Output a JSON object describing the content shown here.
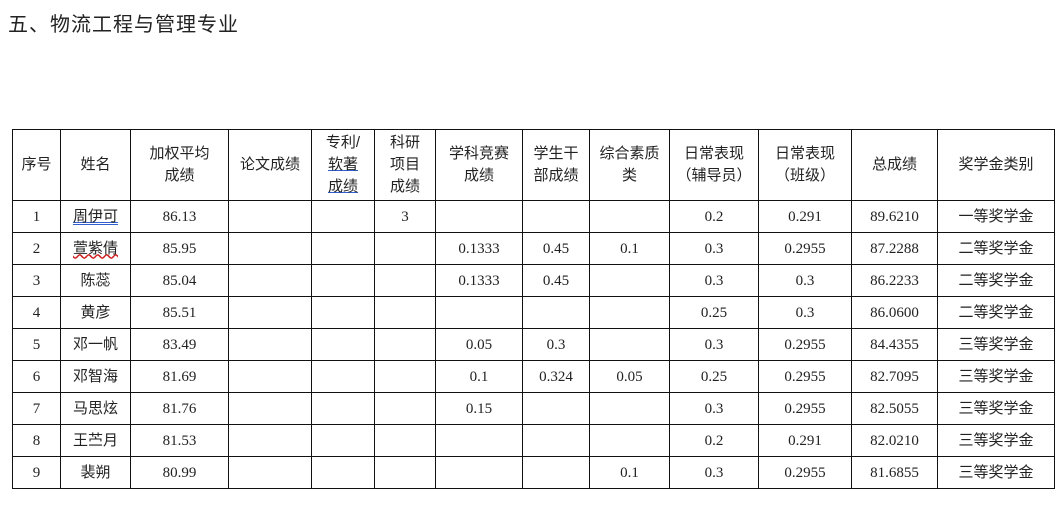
{
  "title": "五、物流工程与管理专业",
  "headers": [
    "序号",
    "姓名",
    "加权平均成绩",
    "论文成绩",
    "专利/软著成绩",
    "科研项目成绩",
    "学科竞赛成绩",
    "学生干部成绩",
    "综合素质类",
    "日常表现（辅导员）",
    "日常表现（班级）",
    "总成绩",
    "奖学金类别"
  ],
  "header_lines": [
    [
      "序号"
    ],
    [
      "姓名"
    ],
    [
      "加权平均",
      "成绩"
    ],
    [
      "论文成绩"
    ],
    [
      "专利/",
      "软著",
      "成绩"
    ],
    [
      "科研",
      "项目",
      "成绩"
    ],
    [
      "学科竞赛",
      "成绩"
    ],
    [
      "学生干",
      "部成绩"
    ],
    [
      "综合素质",
      "类"
    ],
    [
      "日常表现",
      "（辅导员）"
    ],
    [
      "日常表现",
      "（班级）"
    ],
    [
      "总成绩"
    ],
    [
      "奖学金类别"
    ]
  ],
  "rows": [
    [
      "1",
      "周伊可",
      "86.13",
      "",
      "",
      "3",
      "",
      "",
      "",
      "0.2",
      "0.291",
      "89.6210",
      "一等奖学金"
    ],
    [
      "2",
      "萱紫倩",
      "85.95",
      "",
      "",
      "",
      "0.1333",
      "0.45",
      "0.1",
      "0.3",
      "0.2955",
      "87.2288",
      "二等奖学金"
    ],
    [
      "3",
      "陈蕊",
      "85.04",
      "",
      "",
      "",
      "0.1333",
      "0.45",
      "",
      "0.3",
      "0.3",
      "86.2233",
      "二等奖学金"
    ],
    [
      "4",
      "黄彦",
      "85.51",
      "",
      "",
      "",
      "",
      "",
      "",
      "0.25",
      "0.3",
      "86.0600",
      "二等奖学金"
    ],
    [
      "5",
      "邓一帆",
      "83.49",
      "",
      "",
      "",
      "0.05",
      "0.3",
      "",
      "0.3",
      "0.2955",
      "84.4355",
      "三等奖学金"
    ],
    [
      "6",
      "邓智海",
      "81.69",
      "",
      "",
      "",
      "0.1",
      "0.324",
      "0.05",
      "0.25",
      "0.2955",
      "82.7095",
      "三等奖学金"
    ],
    [
      "7",
      "马思炫",
      "81.76",
      "",
      "",
      "",
      "0.15",
      "",
      "",
      "0.3",
      "0.2955",
      "82.5055",
      "三等奖学金"
    ],
    [
      "8",
      "王苎月",
      "81.53",
      "",
      "",
      "",
      "",
      "",
      "",
      "0.2",
      "0.291",
      "82.0210",
      "三等奖学金"
    ],
    [
      "9",
      "裴朔",
      "80.99",
      "",
      "",
      "",
      "",
      "",
      "0.1",
      "0.3",
      "0.2955",
      "81.6855",
      "三等奖学金"
    ]
  ]
}
